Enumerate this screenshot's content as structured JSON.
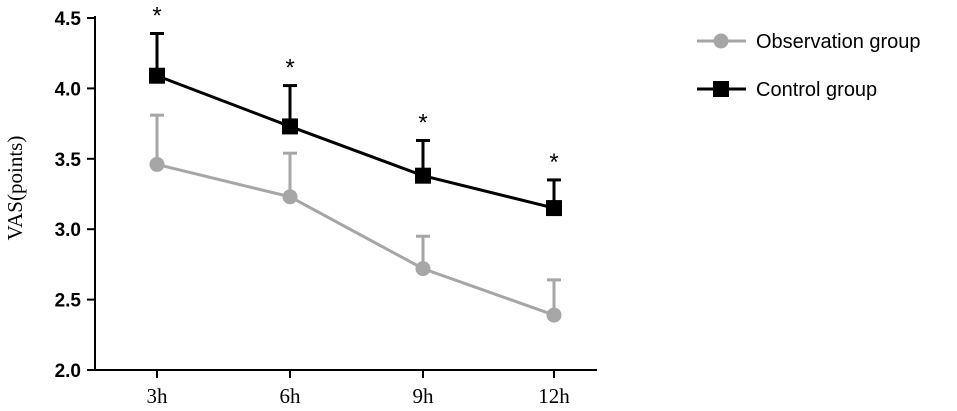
{
  "chart_data": {
    "type": "line",
    "title": "",
    "xlabel": "",
    "ylabel": "VAS(points)",
    "categories": [
      "3h",
      "6h",
      "9h",
      "12h"
    ],
    "ylim": [
      2.0,
      4.5
    ],
    "yticks": [
      "2.0",
      "2.5",
      "3.0",
      "3.5",
      "4.0",
      "4.5"
    ],
    "grid": false,
    "legend_position": "top-right",
    "series": [
      {
        "name": "Observation group",
        "values": [
          3.46,
          3.23,
          2.72,
          2.39
        ],
        "errors": [
          0.35,
          0.31,
          0.23,
          0.25
        ],
        "color": "#a6a6a6",
        "marker": "circle"
      },
      {
        "name": "Control group",
        "values": [
          4.09,
          3.73,
          3.38,
          3.15
        ],
        "errors": [
          0.3,
          0.29,
          0.25,
          0.2
        ],
        "color": "#000000",
        "marker": "square"
      }
    ],
    "annotations": [
      "*",
      "*",
      "*",
      "*"
    ]
  }
}
